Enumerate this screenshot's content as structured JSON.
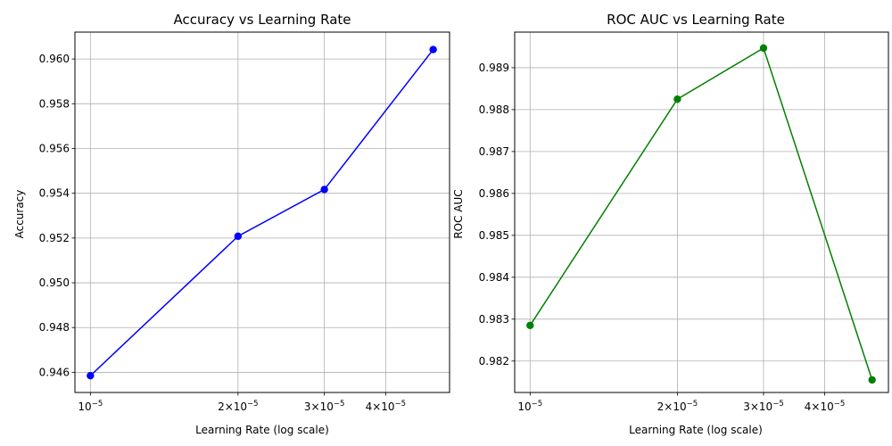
{
  "chart_data": [
    {
      "type": "line",
      "title": "Accuracy vs Learning Rate",
      "xlabel": "Learning Rate (log scale)",
      "ylabel": "Accuracy",
      "xscale": "log",
      "x": [
        1e-05,
        2e-05,
        3e-05,
        5e-05
      ],
      "xlim": [
        9.3e-06,
        5.4e-05
      ],
      "ylim": [
        0.9451,
        0.9612
      ],
      "yticks": [
        "0.946",
        "0.948",
        "0.950",
        "0.952",
        "0.954",
        "0.956",
        "0.958",
        "0.960"
      ],
      "xticks": [
        {
          "value": 1e-05,
          "base": "10",
          "exp": "−5"
        },
        {
          "value": 2e-05,
          "base": "2×10",
          "exp": "−5"
        },
        {
          "value": 3e-05,
          "base": "3×10",
          "exp": "−5"
        },
        {
          "value": 4e-05,
          "base": "4×10",
          "exp": "−5"
        }
      ],
      "grid": true,
      "series": [
        {
          "color": "#0000ff",
          "marker": "circle",
          "values": [
            0.94585,
            0.95208,
            0.95417,
            0.96042
          ]
        }
      ]
    },
    {
      "type": "line",
      "title": "ROC AUC vs Learning Rate",
      "xlabel": "Learning Rate (log scale)",
      "ylabel": "ROC AUC",
      "xscale": "log",
      "x": [
        1e-05,
        2e-05,
        3e-05,
        5e-05
      ],
      "xlim": [
        9.3e-06,
        5.4e-05
      ],
      "ylim": [
        0.98125,
        0.98985
      ],
      "yticks": [
        "0.982",
        "0.983",
        "0.984",
        "0.985",
        "0.986",
        "0.987",
        "0.988",
        "0.989"
      ],
      "xticks": [
        {
          "value": 1e-05,
          "base": "10",
          "exp": "−5"
        },
        {
          "value": 2e-05,
          "base": "2×10",
          "exp": "−5"
        },
        {
          "value": 3e-05,
          "base": "3×10",
          "exp": "−5"
        },
        {
          "value": 4e-05,
          "base": "4×10",
          "exp": "−5"
        }
      ],
      "grid": true,
      "series": [
        {
          "color": "#008000",
          "marker": "circle",
          "values": [
            0.98285,
            0.98825,
            0.98947,
            0.98155
          ]
        }
      ]
    }
  ]
}
